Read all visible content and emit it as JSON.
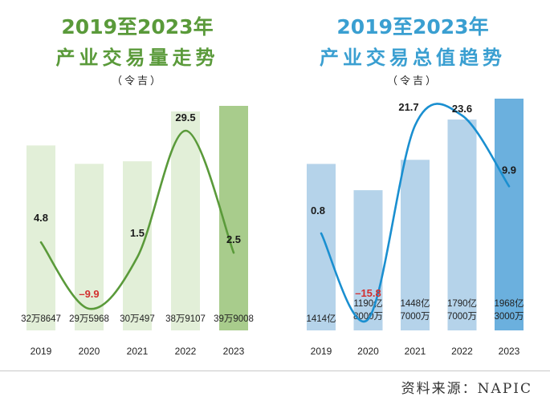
{
  "source": "资料来源：NAPIC",
  "chart_data": [
    {
      "type": "bar",
      "title": "2019至2023年",
      "subtitle": "产业交易量走势",
      "unit_note": "（令吉）",
      "colors": {
        "title": "#5a9a3a",
        "bar": "#e2efd8",
        "bar_last": "#a8cc8c",
        "line": "#5a9a3a",
        "negative": "#d32f2f"
      },
      "categories": [
        "2019",
        "2020",
        "2021",
        "2022",
        "2023"
      ],
      "bar_labels": [
        "32万8647",
        "29万5968",
        "30万497",
        "38万9107",
        "39万9008"
      ],
      "values": [
        328647,
        295968,
        300497,
        389107,
        399008
      ],
      "growth_labels": [
        "4.8",
        "–9.9",
        "1.5",
        "29.5",
        "2.5"
      ],
      "growth": [
        4.8,
        -9.9,
        1.5,
        29.5,
        2.5
      ]
    },
    {
      "type": "bar",
      "title": "2019至2023年",
      "subtitle": "产业交易总值趋势",
      "unit_note": "（令吉）",
      "colors": {
        "title": "#3a9fd1",
        "bar": "#b5d3ea",
        "bar_last": "#6bb0de",
        "line": "#1a8fd0",
        "negative": "#d32f2f"
      },
      "categories": [
        "2019",
        "2020",
        "2021",
        "2022",
        "2023"
      ],
      "bar_labels": [
        "1414亿",
        "1190亿\n8000万",
        "1448亿\n7000万",
        "1790亿\n7000万",
        "1968亿\n3000万"
      ],
      "values": [
        1414,
        1190.8,
        1448.7,
        1790.7,
        1968.3
      ],
      "growth_labels": [
        "0.8",
        "–15.8",
        "21.7",
        "23.6",
        "9.9"
      ],
      "growth": [
        0.8,
        -15.8,
        21.7,
        23.6,
        9.9
      ]
    }
  ]
}
